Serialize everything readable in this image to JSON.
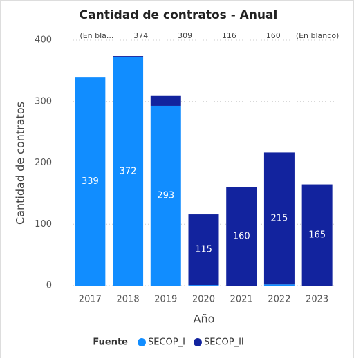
{
  "chart_data": {
    "type": "bar",
    "stacked": true,
    "title": "Cantidad de contratos - Anual",
    "x_label": "Año",
    "y_label": "Cantidad de contratos",
    "legend_title": "Fuente",
    "categories": [
      "2017",
      "2018",
      "2019",
      "2020",
      "2021",
      "2022",
      "2023"
    ],
    "series": [
      {
        "name": "SECOP_I",
        "color": "#118dff",
        "values": [
          339,
          372,
          293,
          1,
          0,
          2,
          0
        ]
      },
      {
        "name": "SECOP_II",
        "color": "#12239e",
        "values": [
          0,
          2,
          16,
          115,
          160,
          215,
          165
        ]
      }
    ],
    "top_labels": [
      "(En bla...",
      "374",
      "309",
      "116",
      "160",
      "(En blanco)"
    ],
    "ylim": [
      0,
      400
    ],
    "yticks": [
      0,
      100,
      200,
      300,
      400
    ],
    "grid": true
  }
}
